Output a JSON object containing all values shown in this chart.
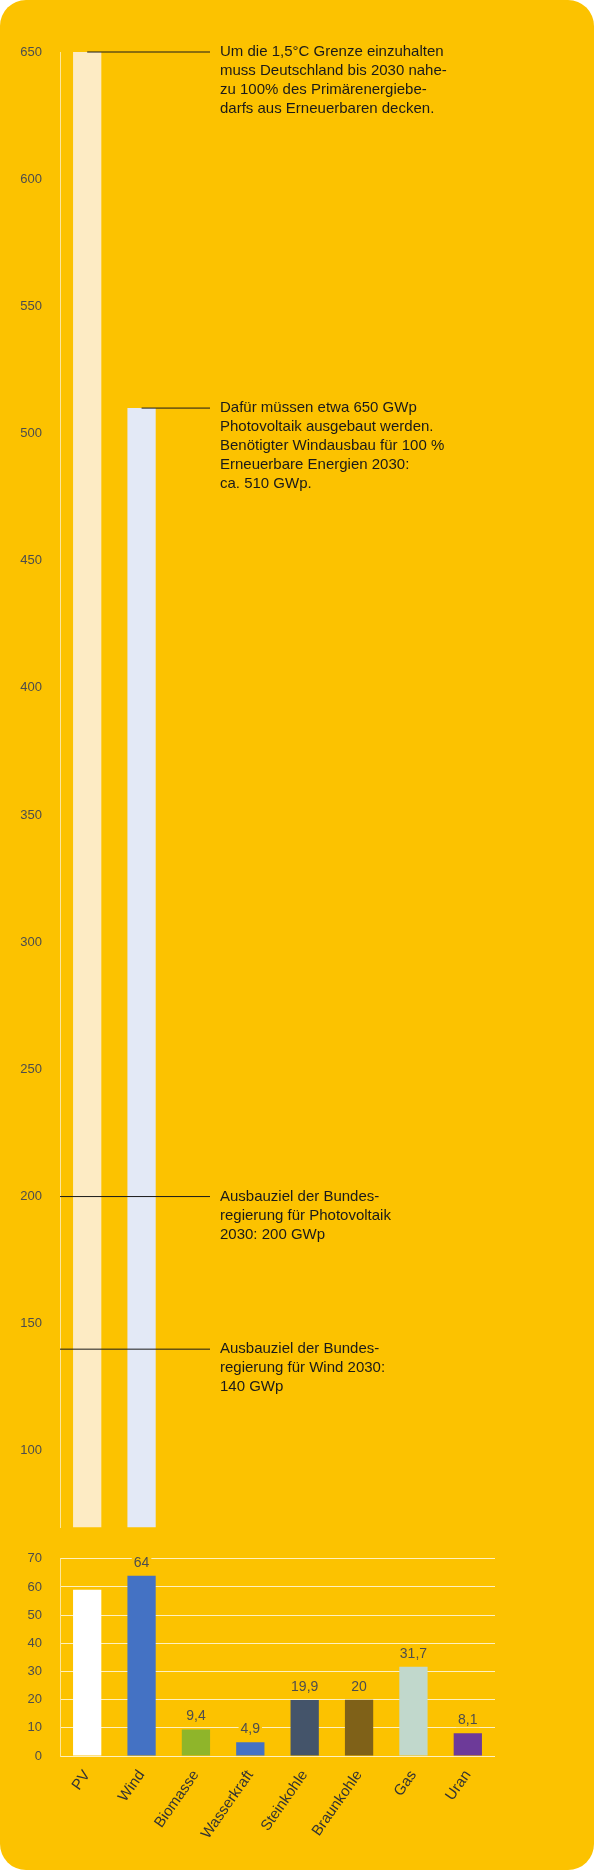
{
  "chart_data": [
    {
      "type": "bar",
      "categories": [
        "PV",
        "Wind",
        "Biomasse",
        "Wasserkraft",
        "Steinkohle",
        "Braunkohle",
        "Gas",
        "Uran"
      ],
      "values": [
        650,
        510,
        null,
        null,
        null,
        null,
        null,
        null
      ],
      "colors": [
        "#fdebc4",
        "#e3e9f6",
        "#8fb52a",
        "#4472c4",
        "#44546a",
        "#7f6118",
        "#c1d8cc",
        "#6d3a99"
      ],
      "ylim": [
        70,
        650
      ],
      "yticks": [
        100,
        150,
        200,
        250,
        300,
        350,
        400,
        450,
        500,
        550,
        600,
        650
      ],
      "tick_labels": "y",
      "grid": false,
      "annotations": [
        {
          "text": "Um die 1,5°C Grenze einzuhalten\nmuss Deutschland bis 2030 nahe-\nzu 100% des Primärenergiebe-\ndarfs aus Erneuerbaren decken.",
          "x": "PV",
          "y": 650
        },
        {
          "text": "Dafür müssen etwa 650 GWp\nPhotovoltaik ausgebaut werden.\nBenötigter Windausbau für 100 %\nErneuerbare Energien 2030:\nca. 510 GWp.",
          "x": "Wind",
          "y": 510
        }
      ],
      "ref_lines": [
        {
          "axis": "y",
          "value": 200,
          "label": "Ausbauziel der Bundes-\nregierung für Photovoltaik\n2030: 200 GWp"
        },
        {
          "axis": "y",
          "value": 140,
          "label": "Ausbauziel der Bundes-\nregierung für Wind 2030:\n140 GWp"
        }
      ]
    },
    {
      "type": "bar",
      "categories": [
        "PV",
        "Wind",
        "Biomasse",
        "Wasserkraft",
        "Steinkohle",
        "Braunkohle",
        "Gas",
        "Uran"
      ],
      "values": [
        59,
        64,
        9.4,
        4.9,
        19.9,
        20,
        31.7,
        8.1
      ],
      "colors": [
        "#ffffff",
        "#4472c4",
        "#8fb52a",
        "#4472c4",
        "#44546a",
        "#7f6118",
        "#c1d8cc",
        "#6d3a99"
      ],
      "value_labels": [
        null,
        "64",
        "9,4",
        "4,9",
        "19,9",
        "20",
        "31,7",
        "8,1"
      ],
      "ylim": [
        0,
        70
      ],
      "yticks": [
        0,
        10,
        20,
        30,
        40,
        50,
        60,
        70
      ],
      "grid": "y"
    }
  ]
}
